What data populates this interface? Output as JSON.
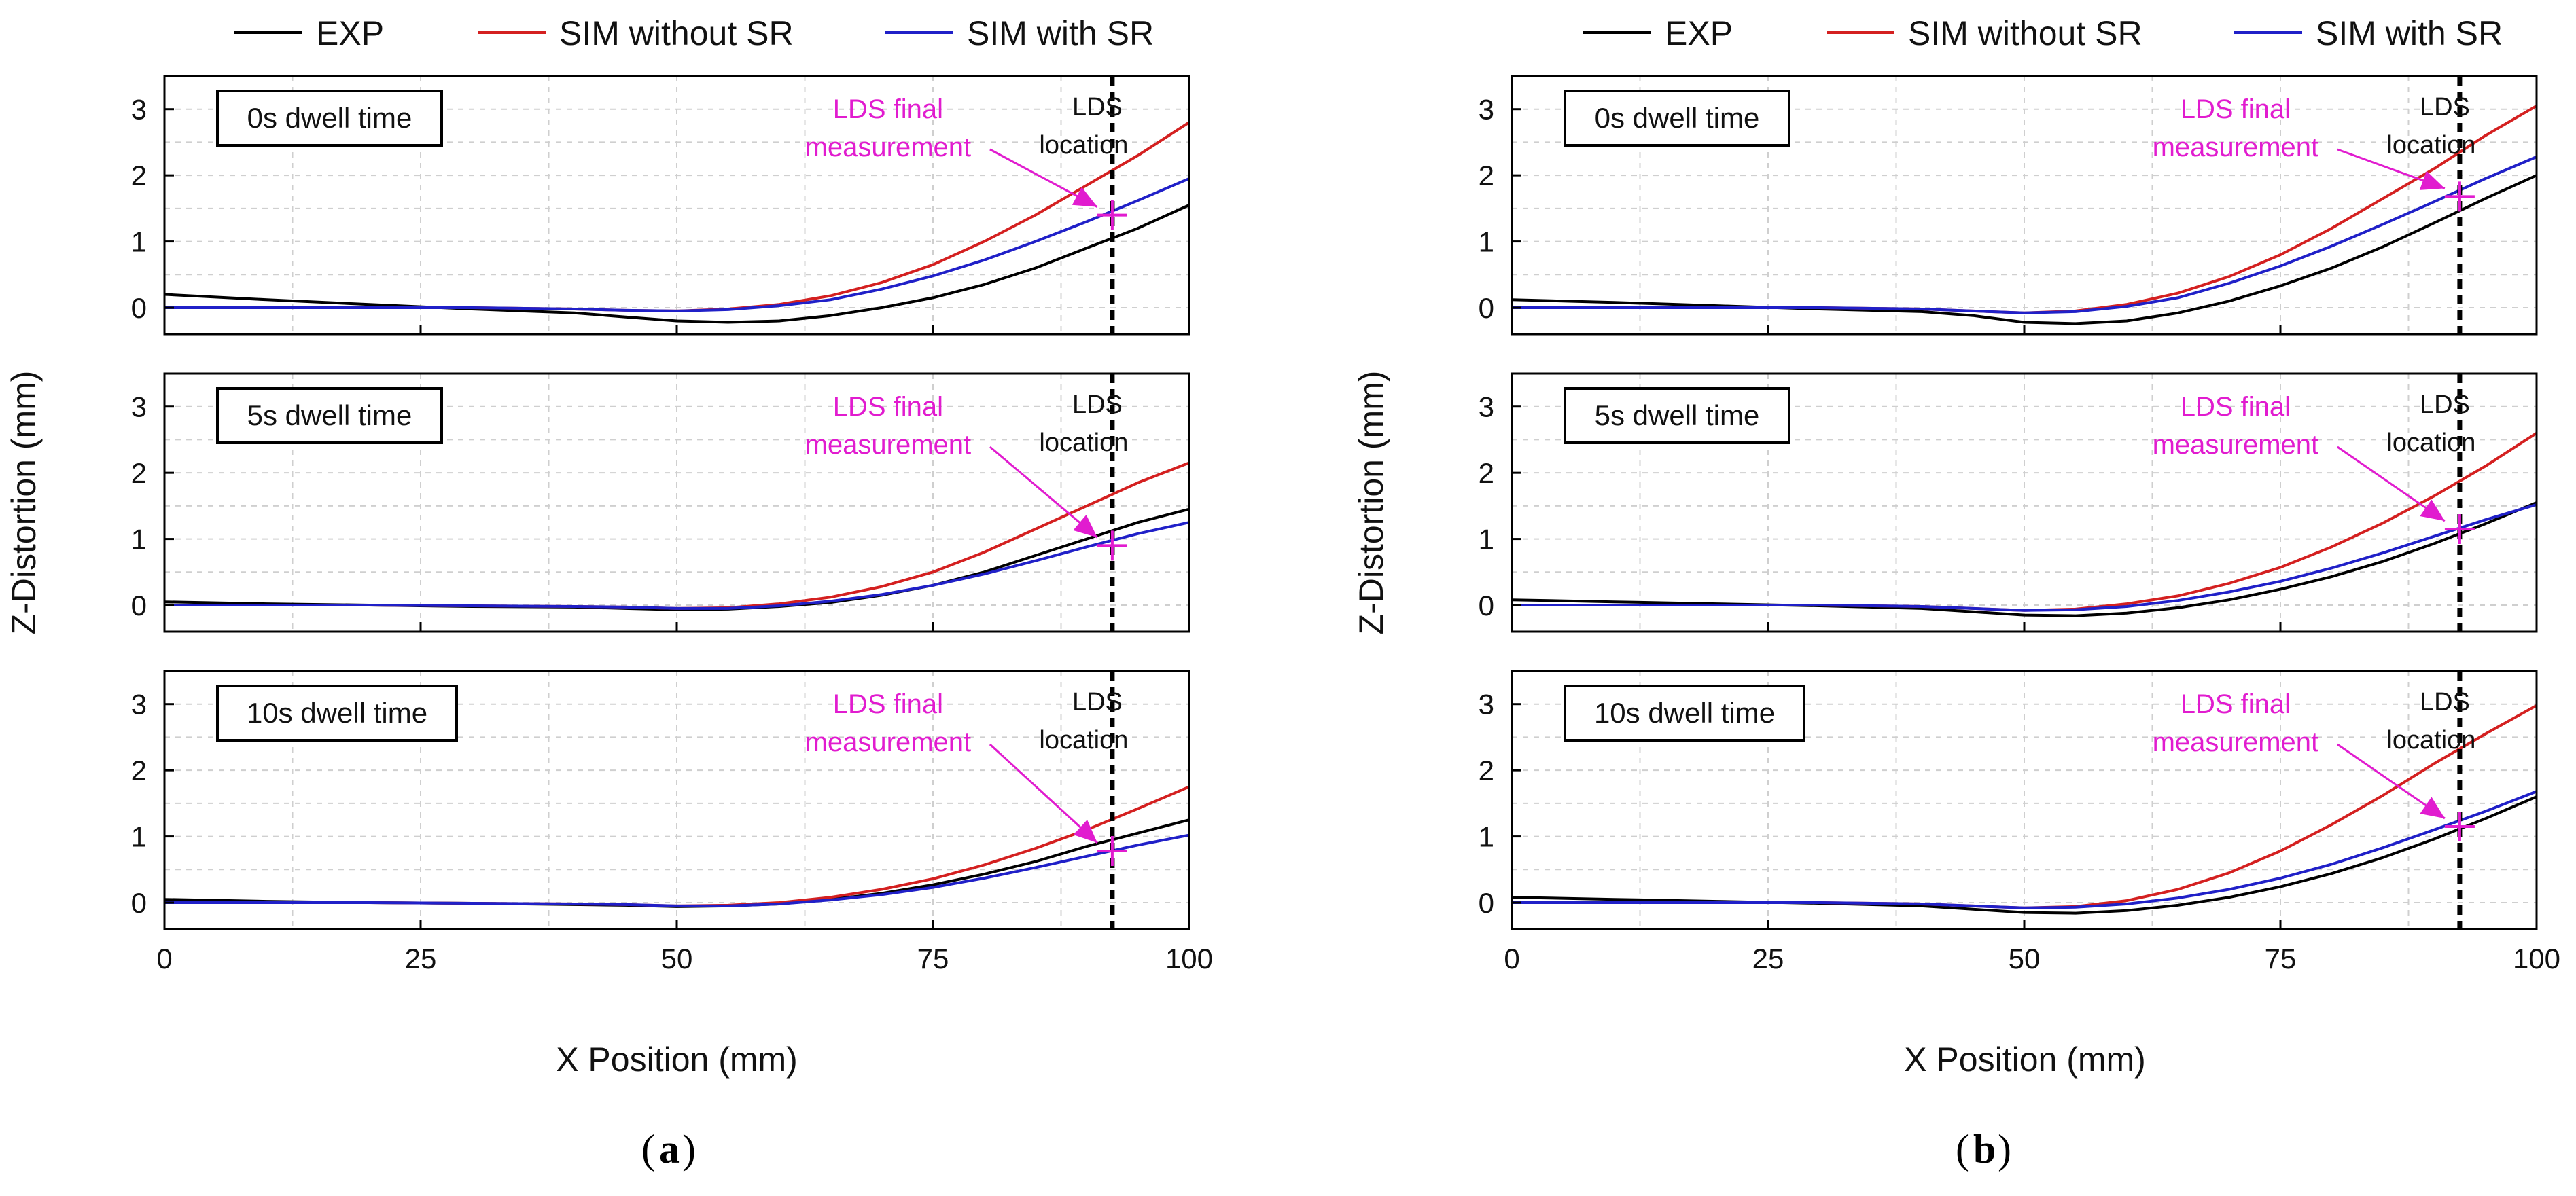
{
  "figure": {
    "panel_a_label": "a",
    "panel_b_label": "b",
    "y_axis_label": "Z-Distortion (mm)",
    "x_axis_label": "X Position (mm)",
    "legend": [
      {
        "label": "EXP",
        "color": "#000000"
      },
      {
        "label": "SIM without SR",
        "color": "#d42020"
      },
      {
        "label": "SIM with SR",
        "color": "#2020c8"
      }
    ],
    "annotation_color": "#e11ccf",
    "lds_final_line1": "LDS final",
    "lds_final_line2": "measurement",
    "lds_loc_line1": "LDS",
    "lds_loc_line2": "location"
  },
  "chart_data": [
    {
      "type": "line",
      "panel": "a",
      "row": 0,
      "title": "0s dwell time",
      "xlim": [
        0,
        100
      ],
      "ylim": [
        -0.4,
        3.5
      ],
      "xticks": [
        0,
        25,
        50,
        75,
        100
      ],
      "yticks": [
        0,
        1,
        2,
        3
      ],
      "grid": true,
      "lds_x": 92.5,
      "series": [
        {
          "name": "EXP",
          "x": [
            0,
            10,
            20,
            30,
            40,
            45,
            50,
            55,
            60,
            65,
            70,
            75,
            80,
            85,
            90,
            95,
            100
          ],
          "y": [
            0.2,
            0.12,
            0.05,
            -0.02,
            -0.08,
            -0.14,
            -0.2,
            -0.22,
            -0.2,
            -0.12,
            0.0,
            0.15,
            0.35,
            0.6,
            0.9,
            1.2,
            1.55
          ]
        },
        {
          "name": "SIM without SR",
          "x": [
            0,
            10,
            20,
            30,
            40,
            45,
            50,
            55,
            60,
            65,
            70,
            75,
            80,
            85,
            90,
            95,
            100
          ],
          "y": [
            0.0,
            0.0,
            0.0,
            0.0,
            -0.02,
            -0.04,
            -0.05,
            -0.02,
            0.05,
            0.18,
            0.38,
            0.65,
            1.0,
            1.4,
            1.85,
            2.3,
            2.8
          ]
        },
        {
          "name": "SIM with SR",
          "x": [
            0,
            10,
            20,
            30,
            40,
            45,
            50,
            55,
            60,
            65,
            70,
            75,
            80,
            85,
            90,
            95,
            100
          ],
          "y": [
            0.0,
            0.0,
            0.0,
            0.0,
            -0.02,
            -0.04,
            -0.05,
            -0.03,
            0.03,
            0.12,
            0.28,
            0.48,
            0.72,
            1.0,
            1.3,
            1.62,
            1.95
          ]
        }
      ],
      "marker": {
        "x": 92.5,
        "y": 1.4
      }
    },
    {
      "type": "line",
      "panel": "a",
      "row": 1,
      "title": "5s dwell time",
      "xlim": [
        0,
        100
      ],
      "ylim": [
        -0.4,
        3.5
      ],
      "xticks": [
        0,
        25,
        50,
        75,
        100
      ],
      "yticks": [
        0,
        1,
        2,
        3
      ],
      "grid": true,
      "lds_x": 92.5,
      "series": [
        {
          "name": "EXP",
          "x": [
            0,
            10,
            20,
            30,
            40,
            45,
            50,
            55,
            60,
            65,
            70,
            75,
            80,
            85,
            90,
            95,
            100
          ],
          "y": [
            0.05,
            0.02,
            0.0,
            -0.02,
            -0.03,
            -0.05,
            -0.07,
            -0.06,
            -0.02,
            0.04,
            0.15,
            0.3,
            0.5,
            0.75,
            1.0,
            1.25,
            1.45
          ]
        },
        {
          "name": "SIM without SR",
          "x": [
            0,
            10,
            20,
            30,
            40,
            45,
            50,
            55,
            60,
            65,
            70,
            75,
            80,
            85,
            90,
            95,
            100
          ],
          "y": [
            0.0,
            0.0,
            0.0,
            -0.01,
            -0.02,
            -0.03,
            -0.05,
            -0.04,
            0.02,
            0.12,
            0.28,
            0.5,
            0.8,
            1.15,
            1.5,
            1.85,
            2.15
          ]
        },
        {
          "name": "SIM with SR",
          "x": [
            0,
            10,
            20,
            30,
            40,
            45,
            50,
            55,
            60,
            65,
            70,
            75,
            80,
            85,
            90,
            95,
            100
          ],
          "y": [
            0.0,
            0.0,
            0.0,
            -0.01,
            -0.02,
            -0.03,
            -0.05,
            -0.05,
            -0.01,
            0.06,
            0.16,
            0.3,
            0.47,
            0.67,
            0.88,
            1.08,
            1.25
          ]
        }
      ],
      "marker": {
        "x": 92.5,
        "y": 0.9
      }
    },
    {
      "type": "line",
      "panel": "a",
      "row": 2,
      "title": "10s dwell time",
      "xlim": [
        0,
        100
      ],
      "ylim": [
        -0.4,
        3.5
      ],
      "xticks": [
        0,
        25,
        50,
        75,
        100
      ],
      "yticks": [
        0,
        1,
        2,
        3
      ],
      "grid": true,
      "lds_x": 92.5,
      "series": [
        {
          "name": "EXP",
          "x": [
            0,
            10,
            20,
            30,
            40,
            45,
            50,
            55,
            60,
            65,
            70,
            75,
            80,
            85,
            90,
            95,
            100
          ],
          "y": [
            0.05,
            0.02,
            0.0,
            -0.01,
            -0.03,
            -0.04,
            -0.06,
            -0.05,
            -0.02,
            0.05,
            0.14,
            0.27,
            0.43,
            0.62,
            0.85,
            1.05,
            1.25
          ]
        },
        {
          "name": "SIM without SR",
          "x": [
            0,
            10,
            20,
            30,
            40,
            45,
            50,
            55,
            60,
            65,
            70,
            75,
            80,
            85,
            90,
            95,
            100
          ],
          "y": [
            0.0,
            0.0,
            0.0,
            -0.01,
            -0.02,
            -0.03,
            -0.05,
            -0.04,
            0.0,
            0.08,
            0.2,
            0.36,
            0.57,
            0.82,
            1.1,
            1.42,
            1.75
          ]
        },
        {
          "name": "SIM with SR",
          "x": [
            0,
            10,
            20,
            30,
            40,
            45,
            50,
            55,
            60,
            65,
            70,
            75,
            80,
            85,
            90,
            95,
            100
          ],
          "y": [
            0.0,
            0.0,
            0.0,
            -0.01,
            -0.02,
            -0.03,
            -0.05,
            -0.05,
            -0.02,
            0.04,
            0.12,
            0.23,
            0.37,
            0.53,
            0.7,
            0.87,
            1.02
          ]
        }
      ],
      "marker": {
        "x": 92.5,
        "y": 0.78
      }
    },
    {
      "type": "line",
      "panel": "b",
      "row": 0,
      "title": "0s dwell time",
      "xlim": [
        0,
        100
      ],
      "ylim": [
        -0.4,
        3.5
      ],
      "xticks": [
        0,
        25,
        50,
        75,
        100
      ],
      "yticks": [
        0,
        1,
        2,
        3
      ],
      "grid": true,
      "lds_x": 92.5,
      "series": [
        {
          "name": "EXP",
          "x": [
            0,
            10,
            20,
            30,
            40,
            45,
            50,
            55,
            60,
            65,
            70,
            75,
            80,
            85,
            90,
            95,
            100
          ],
          "y": [
            0.12,
            0.08,
            0.03,
            -0.02,
            -0.06,
            -0.12,
            -0.22,
            -0.24,
            -0.2,
            -0.08,
            0.1,
            0.33,
            0.6,
            0.92,
            1.28,
            1.65,
            2.0
          ]
        },
        {
          "name": "SIM without SR",
          "x": [
            0,
            10,
            20,
            30,
            40,
            45,
            50,
            55,
            60,
            65,
            70,
            75,
            80,
            85,
            90,
            95,
            100
          ],
          "y": [
            0.0,
            0.0,
            0.0,
            0.0,
            -0.02,
            -0.05,
            -0.08,
            -0.05,
            0.05,
            0.22,
            0.47,
            0.8,
            1.2,
            1.65,
            2.1,
            2.6,
            3.05
          ]
        },
        {
          "name": "SIM with SR",
          "x": [
            0,
            10,
            20,
            30,
            40,
            45,
            50,
            55,
            60,
            65,
            70,
            75,
            80,
            85,
            90,
            95,
            100
          ],
          "y": [
            0.0,
            0.0,
            0.0,
            0.0,
            -0.02,
            -0.05,
            -0.08,
            -0.06,
            0.02,
            0.15,
            0.37,
            0.63,
            0.93,
            1.26,
            1.6,
            1.95,
            2.28
          ]
        }
      ],
      "marker": {
        "x": 92.5,
        "y": 1.68
      }
    },
    {
      "type": "line",
      "panel": "b",
      "row": 1,
      "title": "5s dwell time",
      "xlim": [
        0,
        100
      ],
      "ylim": [
        -0.4,
        3.5
      ],
      "xticks": [
        0,
        25,
        50,
        75,
        100
      ],
      "yticks": [
        0,
        1,
        2,
        3
      ],
      "grid": true,
      "lds_x": 92.5,
      "series": [
        {
          "name": "EXP",
          "x": [
            0,
            10,
            20,
            30,
            40,
            45,
            50,
            55,
            60,
            65,
            70,
            75,
            80,
            85,
            90,
            95,
            100
          ],
          "y": [
            0.08,
            0.05,
            0.02,
            -0.01,
            -0.05,
            -0.1,
            -0.15,
            -0.16,
            -0.12,
            -0.04,
            0.08,
            0.24,
            0.43,
            0.66,
            0.93,
            1.23,
            1.55
          ]
        },
        {
          "name": "SIM without SR",
          "x": [
            0,
            10,
            20,
            30,
            40,
            45,
            50,
            55,
            60,
            65,
            70,
            75,
            80,
            85,
            90,
            95,
            100
          ],
          "y": [
            0.0,
            0.0,
            0.0,
            0.0,
            -0.02,
            -0.05,
            -0.08,
            -0.06,
            0.02,
            0.14,
            0.33,
            0.57,
            0.88,
            1.24,
            1.65,
            2.1,
            2.6
          ]
        },
        {
          "name": "SIM with SR",
          "x": [
            0,
            10,
            20,
            30,
            40,
            45,
            50,
            55,
            60,
            65,
            70,
            75,
            80,
            85,
            90,
            95,
            100
          ],
          "y": [
            0.0,
            0.0,
            0.0,
            0.0,
            -0.02,
            -0.05,
            -0.08,
            -0.07,
            -0.02,
            0.07,
            0.2,
            0.36,
            0.56,
            0.79,
            1.04,
            1.29,
            1.52
          ]
        }
      ],
      "marker": {
        "x": 92.5,
        "y": 1.15
      }
    },
    {
      "type": "line",
      "panel": "b",
      "row": 2,
      "title": "10s dwell time",
      "xlim": [
        0,
        100
      ],
      "ylim": [
        -0.4,
        3.5
      ],
      "xticks": [
        0,
        25,
        50,
        75,
        100
      ],
      "yticks": [
        0,
        1,
        2,
        3
      ],
      "grid": true,
      "lds_x": 92.5,
      "series": [
        {
          "name": "EXP",
          "x": [
            0,
            10,
            20,
            30,
            40,
            45,
            50,
            55,
            60,
            65,
            70,
            75,
            80,
            85,
            90,
            95,
            100
          ],
          "y": [
            0.08,
            0.05,
            0.02,
            -0.01,
            -0.05,
            -0.1,
            -0.15,
            -0.16,
            -0.12,
            -0.04,
            0.08,
            0.24,
            0.44,
            0.68,
            0.96,
            1.27,
            1.6
          ]
        },
        {
          "name": "SIM without SR",
          "x": [
            0,
            10,
            20,
            30,
            40,
            45,
            50,
            55,
            60,
            65,
            70,
            75,
            80,
            85,
            90,
            95,
            100
          ],
          "y": [
            0.0,
            0.0,
            0.0,
            0.0,
            -0.02,
            -0.05,
            -0.08,
            -0.06,
            0.03,
            0.2,
            0.45,
            0.78,
            1.18,
            1.62,
            2.1,
            2.55,
            2.98
          ]
        },
        {
          "name": "SIM with SR",
          "x": [
            0,
            10,
            20,
            30,
            40,
            45,
            50,
            55,
            60,
            65,
            70,
            75,
            80,
            85,
            90,
            95,
            100
          ],
          "y": [
            0.0,
            0.0,
            0.0,
            0.0,
            -0.02,
            -0.05,
            -0.08,
            -0.07,
            -0.02,
            0.07,
            0.2,
            0.37,
            0.58,
            0.83,
            1.1,
            1.38,
            1.68
          ]
        }
      ],
      "marker": {
        "x": 92.5,
        "y": 1.15
      }
    }
  ]
}
